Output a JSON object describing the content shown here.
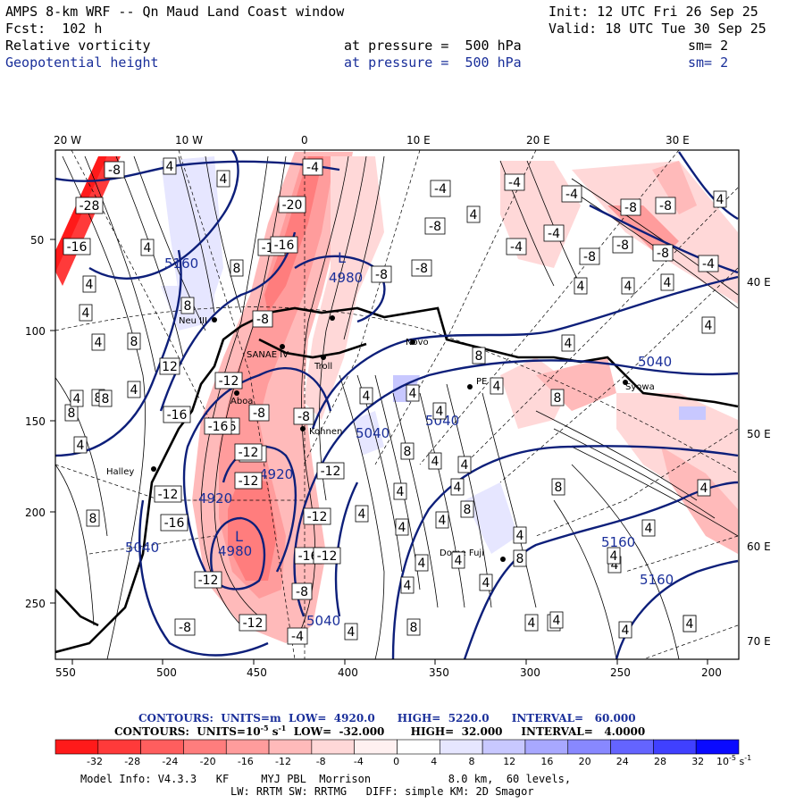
{
  "header": {
    "title": "AMPS 8-km WRF -- Qn Maud Land Coast window",
    "init": "Init: 12 UTC Fri 26 Sep 25",
    "fcst": "Fcst:  102 h",
    "valid": "Valid: 18 UTC Tue 30 Sep 25",
    "field1": {
      "name": "Relative vorticity",
      "level": "at pressure =  500 hPa",
      "sm": "sm= 2"
    },
    "field2": {
      "name": "Geopotential height",
      "level": "at pressure =  500 hPa",
      "sm": "sm= 2"
    }
  },
  "axes": {
    "top_lon": [
      "20 W",
      "10 W",
      "0",
      "10 E",
      "20 E",
      "30 E"
    ],
    "left_y": [
      "50",
      "100",
      "150",
      "200",
      "250"
    ],
    "right_lon": [
      "40 E",
      "50 E",
      "60 E",
      "70 E"
    ],
    "bottom_x": [
      "550",
      "500",
      "450",
      "400",
      "350",
      "300",
      "250",
      "200"
    ]
  },
  "places": [
    "Neu III",
    "SANAE IV",
    "Troll",
    "Novo",
    "PE",
    "Syowa",
    "Halley",
    "Kohnen",
    "Dome Fuji",
    "Aboa"
  ],
  "contour_labels": {
    "vort": [
      "-8",
      "-28",
      "-16",
      "-12",
      "-20",
      "-16",
      "-8",
      "-12",
      "-8",
      "-4",
      "-4",
      "-8",
      "-8",
      "-4",
      "-4",
      "-8",
      "-8",
      "-8",
      "-4",
      "-8",
      "-16",
      "-12",
      "-12",
      "-8",
      "-12",
      "-12",
      "-16",
      "-12",
      "-12",
      "-16",
      "-8",
      "-12",
      "-8",
      "-4",
      "-4",
      "-8",
      "-4",
      "-16",
      "-16",
      "-12",
      "-8",
      "-12",
      "4",
      "8",
      "4",
      "8",
      "8",
      "8",
      "4",
      "4",
      "4",
      "4",
      "4",
      "8",
      "12",
      "4",
      "4",
      "8",
      "4",
      "4",
      "4",
      "8",
      "4",
      "4",
      "4",
      "4",
      "8",
      "4",
      "4",
      "4",
      "8",
      "4",
      "4",
      "4",
      "4",
      "4",
      "8",
      "4",
      "4",
      "4",
      "4",
      "4",
      "4",
      "4",
      "8",
      "4",
      "4",
      "4",
      "4",
      "4",
      "8",
      "4",
      "4",
      "8",
      "8",
      "4",
      "4",
      "4",
      "4",
      "4"
    ],
    "height": [
      "5160",
      "4980",
      "5040",
      "5040",
      "4920",
      "4920",
      "4980",
      "5040",
      "5040",
      "5160",
      "5160",
      "5040"
    ],
    "lows": [
      "L",
      "L"
    ]
  },
  "caption": {
    "line1": "CONTOURS:  UNITS=m  LOW=  4920.0      HIGH=  5220.0      INTERVAL=   60.000",
    "line2_a": "CONTOURS:  UNITS=10",
    "line2_exp": "-5",
    "line2_b": " s",
    "line2_exp2": "-1",
    "line2_c": "  LOW=  -32.000       HIGH=  32.000     INTERVAL=   4.0000"
  },
  "colorbar": {
    "labels": [
      "-32",
      "-28",
      "-24",
      "-20",
      "-16",
      "-12",
      "-8",
      "-4",
      "0",
      "4",
      "8",
      "12",
      "16",
      "20",
      "24",
      "28",
      "32"
    ],
    "unit": "10",
    "unit_exp": "-5",
    "unit_b": " s",
    "unit_exp2": "-1",
    "colors": [
      "#ff1a1a",
      "#ff3a3a",
      "#ff5e5e",
      "#ff7d7d",
      "#ff9c9c",
      "#ffbaba",
      "#ffd8d8",
      "#fff0f0",
      "#ffffff",
      "#ffffff",
      "#e6e6ff",
      "#c8c8ff",
      "#a8a8ff",
      "#8888ff",
      "#6464ff",
      "#4040ff",
      "#0a0aff"
    ]
  },
  "footer": {
    "line1": "Model Info: V4.3.3   KF     MYJ PBL  Morrison            8.0 km,  60 levels,",
    "line2": "LW: RRTM SW: RRTMG   DIFF: simple KM: 2D Smagor"
  }
}
